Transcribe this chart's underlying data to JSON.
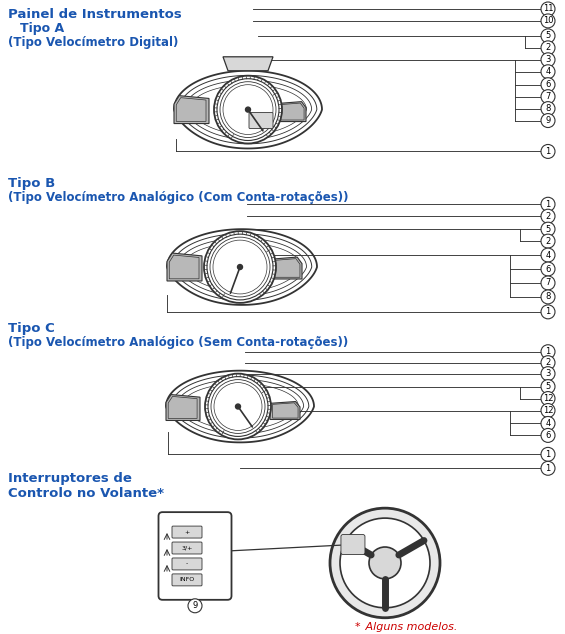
{
  "bg_color": "#ffffff",
  "lc": "#333333",
  "blue": "#1a56b0",
  "red": "#cc0000",
  "gray_fill": "#b8b8b8",
  "light_gray": "#d8d8d8",
  "title_main": "Painel de Instrumentos",
  "label_A": "  Tipo A",
  "sub_A": "(Tipo Velocímetro Digital)",
  "label_B": "Tipo B",
  "sub_B": "(Tipo Velocímetro Analógico (Com Conta-rotações))",
  "label_C": "Tipo C",
  "sub_C": "(Tipo Velocímetro Analógico (Sem Conta-rotações))",
  "label_D": "Interruptores de\nControlo no Volante*",
  "footnote": "* Alguns modelos.",
  "figw": 5.65,
  "figh": 6.34,
  "dpi": 100
}
